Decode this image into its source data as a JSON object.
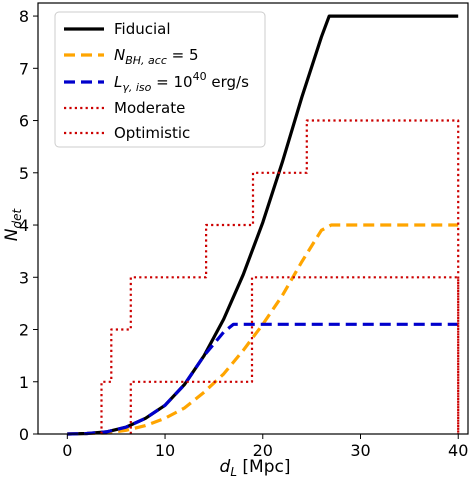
{
  "chart_data": {
    "type": "line",
    "xlabel": "d_L [Mpc]",
    "ylabel": "N_det",
    "xlim": [
      -3,
      41
    ],
    "ylim": [
      0,
      8.25
    ],
    "xticks": [
      0,
      10,
      20,
      30,
      40
    ],
    "yticks": [
      0,
      1,
      2,
      3,
      4,
      5,
      6,
      7,
      8
    ],
    "grid": false,
    "legend_position": "top-left",
    "series": [
      {
        "name": "Fiducial",
        "style": "solid",
        "color": "#000000",
        "x": [
          0,
          2,
          4,
          6,
          8,
          10,
          12,
          14,
          16,
          18,
          20,
          22,
          24,
          26,
          26.8,
          28,
          32,
          36,
          40
        ],
        "y": [
          0,
          0.01,
          0.04,
          0.13,
          0.3,
          0.55,
          0.95,
          1.5,
          2.2,
          3.05,
          4.05,
          5.2,
          6.45,
          7.6,
          8.0,
          8.0,
          8.0,
          8.0,
          8.0
        ]
      },
      {
        "name": "N_BH,acc = 5",
        "style": "dashed",
        "color": "#ffa500",
        "x": [
          0,
          4,
          6,
          8,
          10,
          12,
          14,
          16,
          18,
          20,
          22,
          24,
          26,
          27,
          30,
          35,
          40
        ],
        "y": [
          0,
          0.02,
          0.07,
          0.16,
          0.3,
          0.5,
          0.8,
          1.15,
          1.6,
          2.1,
          2.65,
          3.3,
          3.9,
          4.0,
          4.0,
          4.0,
          4.0
        ]
      },
      {
        "name": "L_γ,iso = 10^40 erg/s",
        "style": "dashed",
        "color": "#0000cc",
        "x": [
          0,
          2,
          4,
          6,
          8,
          10,
          12,
          14,
          16,
          17,
          20,
          25,
          30,
          35,
          40
        ],
        "y": [
          0,
          0.01,
          0.04,
          0.13,
          0.3,
          0.55,
          0.95,
          1.5,
          1.95,
          2.1,
          2.1,
          2.1,
          2.1,
          2.1,
          2.1
        ]
      },
      {
        "name": "Moderate",
        "style": "dotted",
        "color": "#cc0000",
        "x": [
          6.5,
          6.5,
          18.9,
          18.9,
          40,
          40
        ],
        "y": [
          0,
          1,
          1,
          3,
          3,
          0
        ]
      },
      {
        "name": "Optimistic",
        "style": "dotted",
        "color": "#cc0000",
        "x": [
          3.5,
          3.5,
          4.5,
          4.5,
          6.5,
          6.5,
          14.2,
          14.2,
          19,
          19,
          24.5,
          24.5,
          40,
          40
        ],
        "y": [
          0,
          1,
          1,
          2,
          2,
          3,
          3,
          4,
          4,
          5,
          5,
          6,
          6,
          0
        ]
      }
    ]
  },
  "legend": [
    {
      "label": "Fiducial",
      "series": 0
    },
    {
      "label": "= 5",
      "series": 1
    },
    {
      "label": "= 10",
      "series": 2
    },
    {
      "label": "Moderate",
      "series": 3
    },
    {
      "label": "Optimistic",
      "series": 4
    }
  ],
  "text": {
    "xlabel_main": "d",
    "xlabel_sub": "L",
    "xlabel_unit": " [Mpc]",
    "ylabel_main": "N",
    "ylabel_sub": "det",
    "legend_nbh_main": "N",
    "legend_nbh_sub": "BH, acc",
    "legend_nbh_rest": " = 5",
    "legend_lgamma_main": "L",
    "legend_lgamma_sub": "γ, iso",
    "legend_lgamma_eq": " = 10",
    "legend_lgamma_exp": "40",
    "legend_lgamma_unit": " erg/s"
  }
}
